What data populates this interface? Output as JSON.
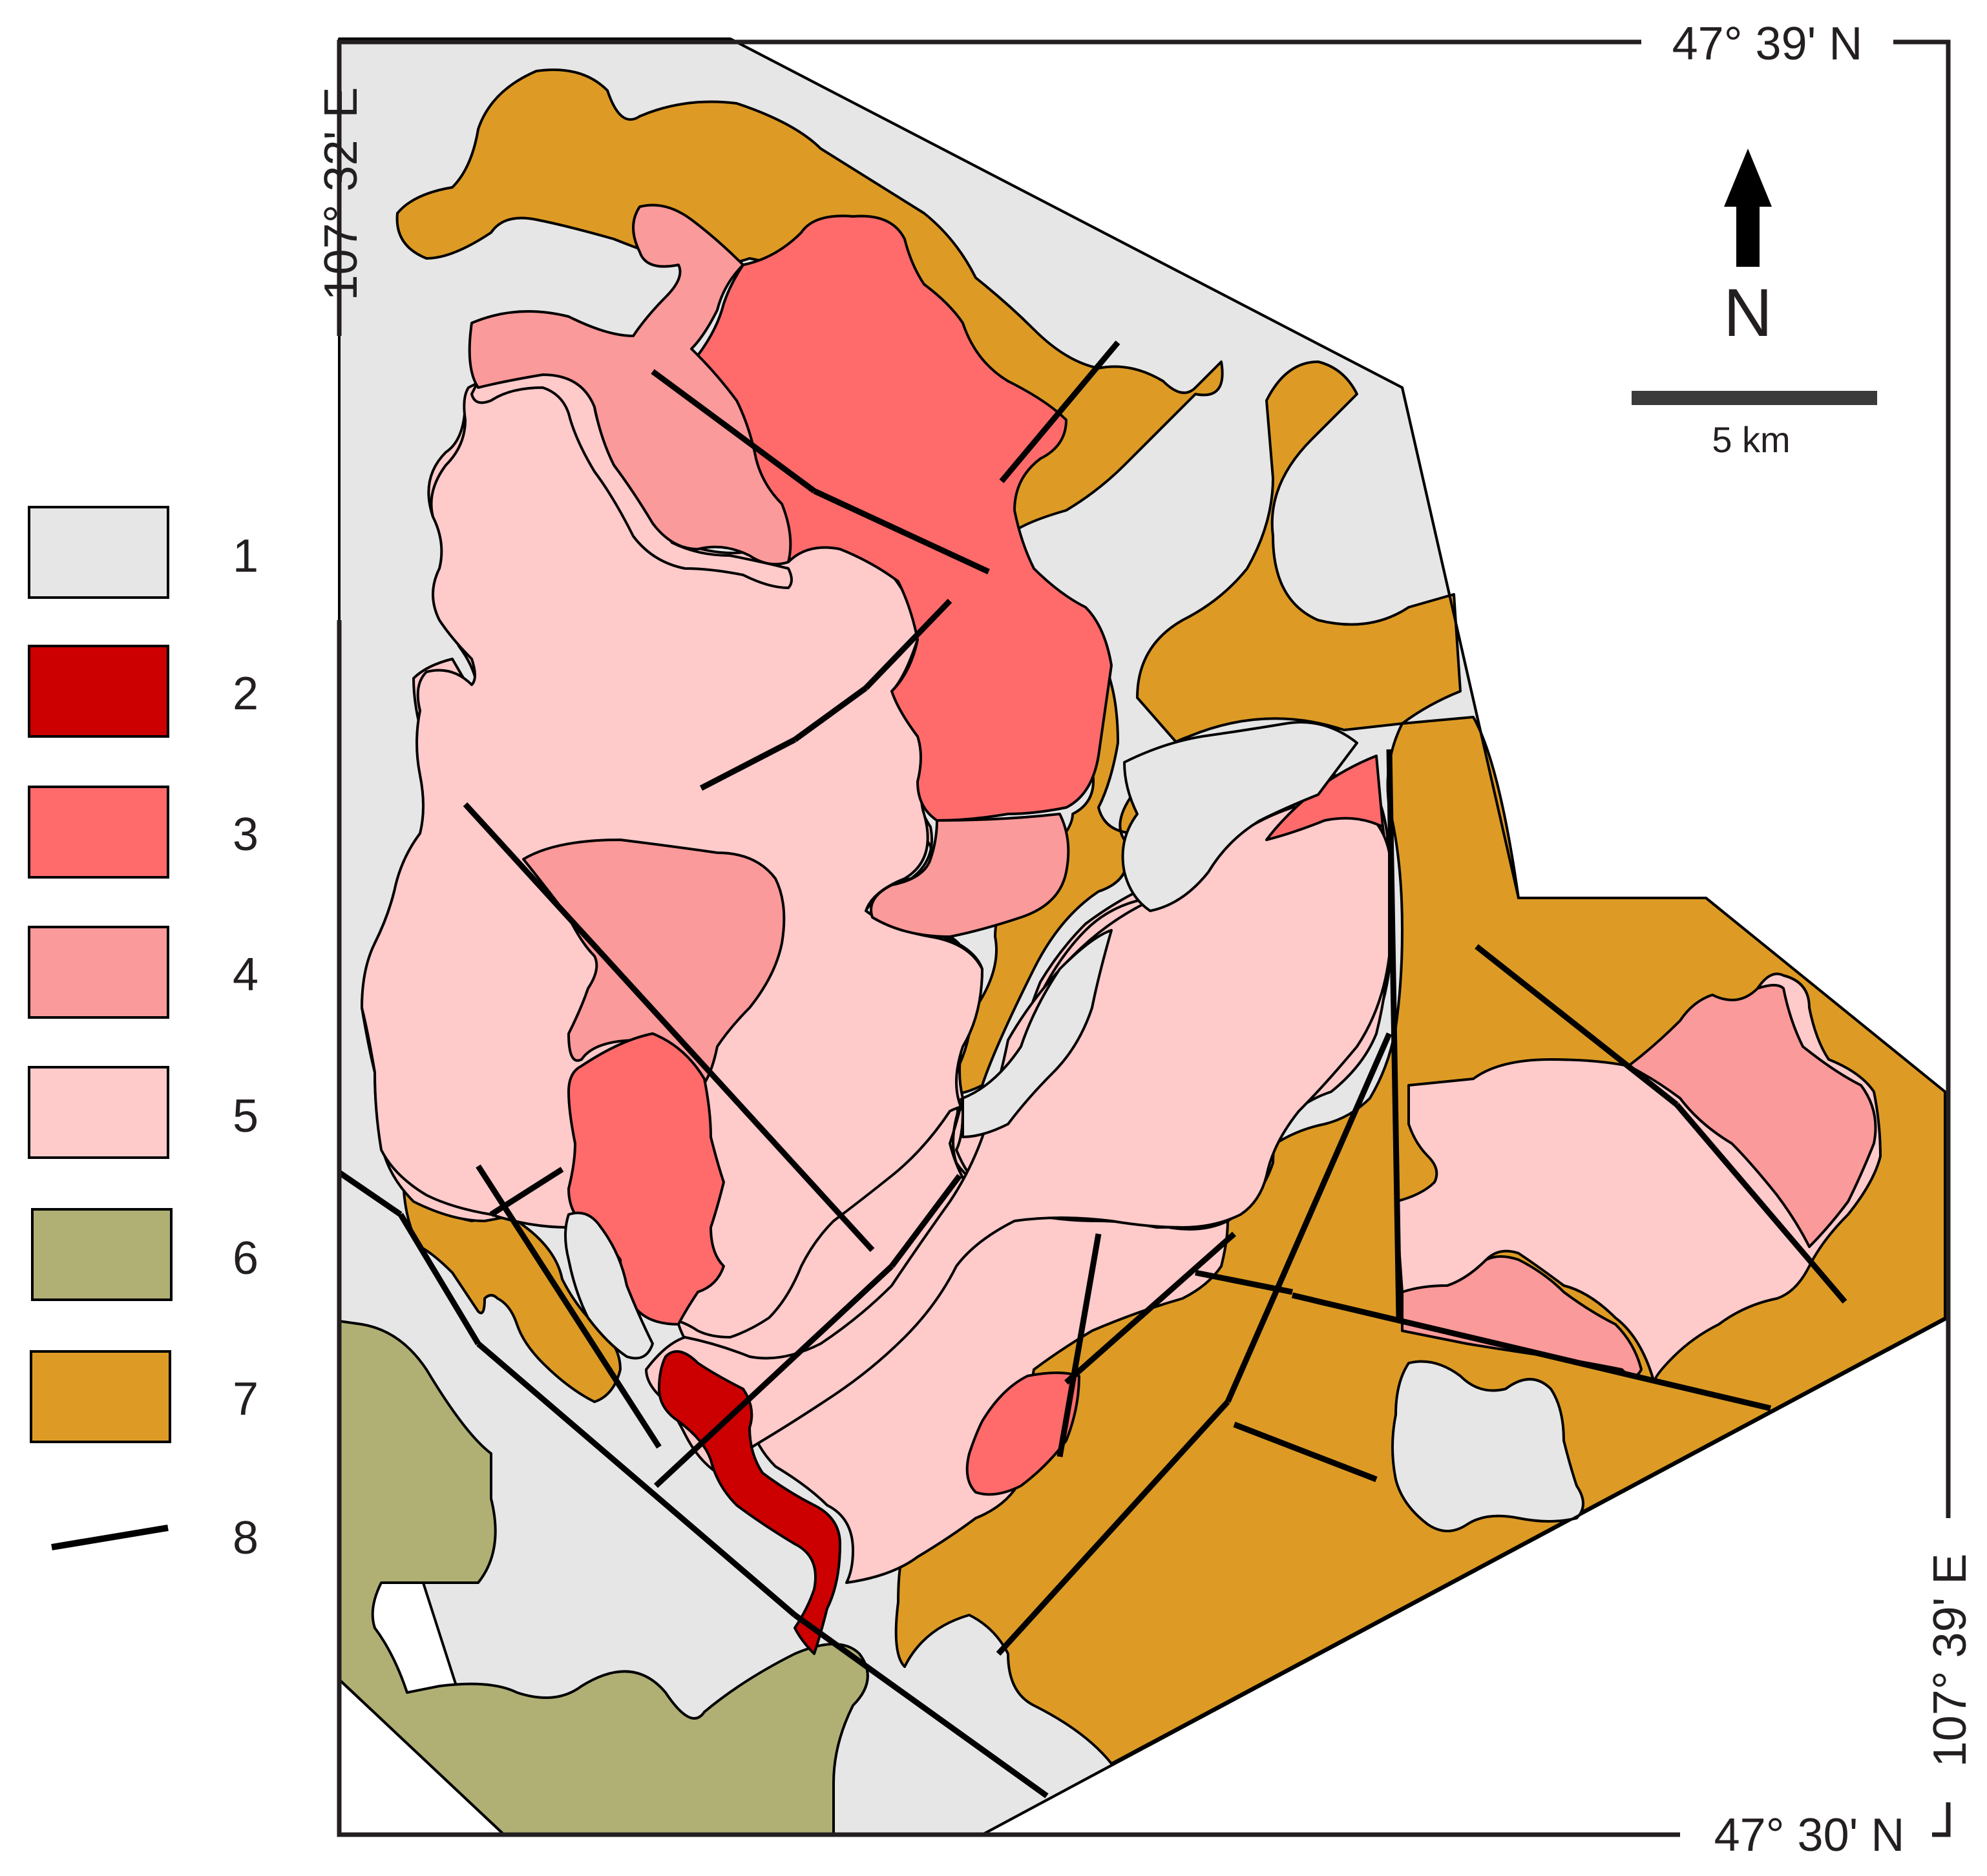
{
  "colors": {
    "unit_1": "#e6e6e7",
    "unit_2": "#cc0000",
    "unit_3": "#ff6b6b",
    "unit_4": "#fb9a9a",
    "unit_5": "#fecaca",
    "unit_6": "#b0b075",
    "unit_7": "#dd9b25",
    "fault": "#000000"
  },
  "coordinates": {
    "top_right": "47° 39' N",
    "bottom_right": "47° 30' N",
    "left_top": "107° 32' E",
    "right_bottom": "107° 39' E"
  },
  "north_arrow": {
    "label": "N",
    "icon": "north-arrow-icon"
  },
  "scale_bar": {
    "label": "5 km"
  },
  "legend": [
    {
      "id": "1",
      "label": "1",
      "color": "#e6e6e7"
    },
    {
      "id": "2",
      "label": "2",
      "color": "#cc0000"
    },
    {
      "id": "3",
      "label": "3",
      "color": "#ff6b6b"
    },
    {
      "id": "4",
      "label": "4",
      "color": "#fb9a9a"
    },
    {
      "id": "5",
      "label": "5",
      "color": "#fecaca"
    },
    {
      "id": "6",
      "label": "6",
      "color": "#b0b075"
    },
    {
      "id": "7",
      "label": "7",
      "color": "#dd9b25"
    },
    {
      "id": "8",
      "label": "8",
      "symbol": "fault-line"
    }
  ]
}
